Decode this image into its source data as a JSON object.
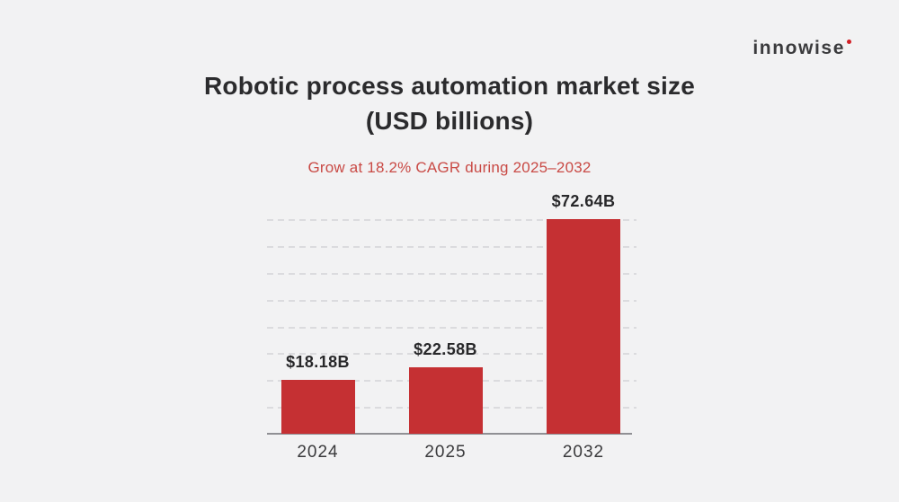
{
  "brand": {
    "name": "innowise",
    "dot_color": "#D22027"
  },
  "header": {
    "title_line1": "Robotic process automation market size",
    "title_line2": "(USD billions)",
    "subtitle": "Grow at 18.2% CAGR during 2025–2032"
  },
  "chart_data": {
    "type": "bar",
    "title": "Robotic process automation market size (USD billions)",
    "subtitle": "Grow at 18.2% CAGR during 2025–2032",
    "categories": [
      "2024",
      "2025",
      "2032"
    ],
    "values": [
      18.18,
      22.58,
      72.64
    ],
    "value_labels": [
      "$18.18B",
      "$22.58B",
      "$72.64B"
    ],
    "xlabel": "",
    "ylabel": "",
    "ylim": [
      0,
      72.64
    ],
    "grid": {
      "horizontal_dashed": true,
      "divisions": 8
    },
    "legend": "none",
    "bar_color": "#C53033"
  },
  "colors": {
    "background": "#F2F2F3",
    "title": "#2B2B2D",
    "subtitle": "#C94A45",
    "bar": "#C53033",
    "axis_line": "#909094",
    "gridline": "#DBDBDE",
    "tick_label": "#3A3A3C",
    "value_label": "#28282A"
  }
}
